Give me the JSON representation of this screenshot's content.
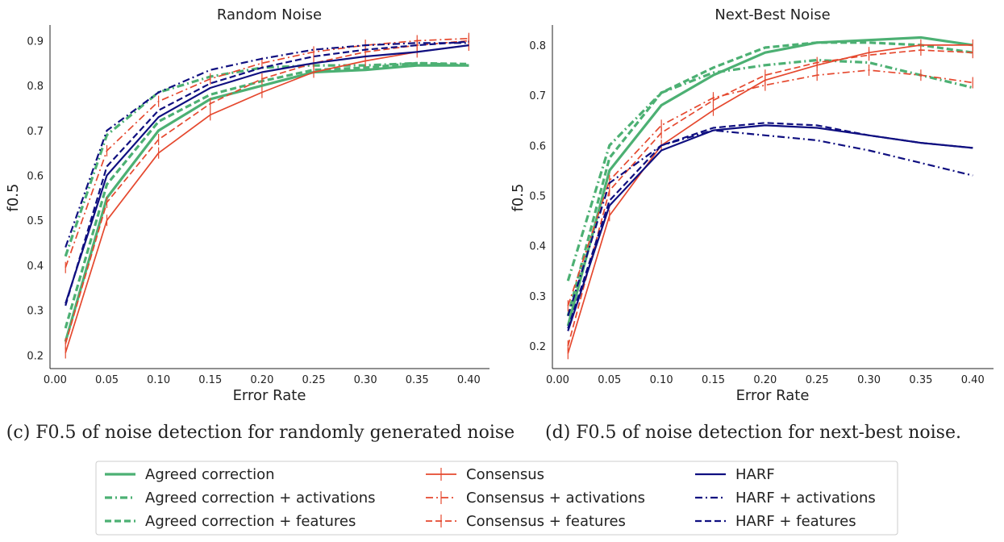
{
  "colors": {
    "agreed": "#4CB073",
    "consensus": "#E5482E",
    "harf": "#0F0F80",
    "axis": "#222222"
  },
  "chart_data": [
    {
      "type": "line",
      "title": "Random Noise",
      "xlabel": "Error Rate",
      "ylabel": "f0.5",
      "xlim": [
        -0.005,
        0.42
      ],
      "ylim": [
        0.17,
        0.935
      ],
      "x_ticks": [
        "0.00",
        "0.05",
        "0.10",
        "0.15",
        "0.20",
        "0.25",
        "0.30",
        "0.35",
        "0.40"
      ],
      "y_ticks": [
        "0.2",
        "0.3",
        "0.4",
        "0.5",
        "0.6",
        "0.7",
        "0.8",
        "0.9"
      ],
      "grid": false,
      "caption": "(c) F0.5 of noise detection for randomly generated noise",
      "series": [
        {
          "name": "Agreed correction",
          "method": "agreed",
          "style": "solid",
          "x": [
            0.01,
            0.05,
            0.1,
            0.15,
            0.2,
            0.25,
            0.3,
            0.35,
            0.4
          ],
          "y": [
            0.23,
            0.55,
            0.7,
            0.77,
            0.8,
            0.83,
            0.835,
            0.845,
            0.845
          ]
        },
        {
          "name": "Agreed correction + activations",
          "method": "agreed",
          "style": "dashdot",
          "x": [
            0.01,
            0.05,
            0.1,
            0.15,
            0.2,
            0.25,
            0.3,
            0.35,
            0.4
          ],
          "y": [
            0.42,
            0.69,
            0.785,
            0.82,
            0.84,
            0.845,
            0.845,
            0.85,
            0.845
          ]
        },
        {
          "name": "Agreed correction + features",
          "method": "agreed",
          "style": "dashed",
          "x": [
            0.01,
            0.05,
            0.1,
            0.15,
            0.2,
            0.25,
            0.3,
            0.35,
            0.4
          ],
          "y": [
            0.26,
            0.58,
            0.72,
            0.78,
            0.81,
            0.835,
            0.84,
            0.85,
            0.848
          ]
        },
        {
          "name": "Consensus",
          "method": "consensus",
          "style": "solid",
          "x": [
            0.01,
            0.05,
            0.1,
            0.15,
            0.2,
            0.25,
            0.3,
            0.35,
            0.4
          ],
          "y": [
            0.205,
            0.5,
            0.65,
            0.735,
            0.785,
            0.83,
            0.855,
            0.875,
            0.89
          ]
        },
        {
          "name": "Consensus + activations",
          "method": "consensus",
          "style": "dashdot",
          "x": [
            0.01,
            0.05,
            0.1,
            0.15,
            0.2,
            0.25,
            0.3,
            0.35,
            0.4
          ],
          "y": [
            0.395,
            0.655,
            0.765,
            0.815,
            0.85,
            0.875,
            0.89,
            0.9,
            0.905
          ]
        },
        {
          "name": "Consensus + features",
          "method": "consensus",
          "style": "dashed",
          "x": [
            0.01,
            0.05,
            0.1,
            0.15,
            0.2,
            0.25,
            0.3,
            0.35,
            0.4
          ],
          "y": [
            0.225,
            0.54,
            0.68,
            0.76,
            0.815,
            0.85,
            0.875,
            0.89,
            0.9
          ]
        },
        {
          "name": "HARF",
          "method": "harf",
          "style": "solid",
          "x": [
            0.01,
            0.05,
            0.1,
            0.15,
            0.2,
            0.25,
            0.3,
            0.35,
            0.4
          ],
          "y": [
            0.315,
            0.6,
            0.73,
            0.795,
            0.83,
            0.85,
            0.865,
            0.875,
            0.89
          ]
        },
        {
          "name": "HARF + activations",
          "method": "harf",
          "style": "dashdot",
          "x": [
            0.01,
            0.05,
            0.1,
            0.15,
            0.2,
            0.25,
            0.3,
            0.35,
            0.4
          ],
          "y": [
            0.44,
            0.7,
            0.785,
            0.835,
            0.86,
            0.88,
            0.89,
            0.895,
            0.895
          ]
        },
        {
          "name": "HARF + features",
          "method": "harf",
          "style": "dashed",
          "x": [
            0.01,
            0.05,
            0.1,
            0.15,
            0.2,
            0.25,
            0.3,
            0.35,
            0.4
          ],
          "y": [
            0.31,
            0.62,
            0.745,
            0.805,
            0.84,
            0.865,
            0.88,
            0.89,
            0.898
          ]
        }
      ]
    },
    {
      "type": "line",
      "title": "Next-Best Noise",
      "xlabel": "Error Rate",
      "ylabel": "f0.5",
      "xlim": [
        -0.005,
        0.42
      ],
      "ylim": [
        0.155,
        0.84
      ],
      "x_ticks": [
        "0.00",
        "0.05",
        "0.10",
        "0.15",
        "0.20",
        "0.25",
        "0.30",
        "0.35",
        "0.40"
      ],
      "y_ticks": [
        "0.2",
        "0.3",
        "0.4",
        "0.5",
        "0.6",
        "0.7",
        "0.8"
      ],
      "grid": false,
      "caption": "(d) F0.5 of noise detection for next-best noise.",
      "series": [
        {
          "name": "Agreed correction",
          "method": "agreed",
          "style": "solid",
          "x": [
            0.01,
            0.05,
            0.1,
            0.15,
            0.2,
            0.25,
            0.3,
            0.35,
            0.4
          ],
          "y": [
            0.24,
            0.55,
            0.68,
            0.74,
            0.785,
            0.805,
            0.81,
            0.815,
            0.8
          ]
        },
        {
          "name": "Agreed correction + activations",
          "method": "agreed",
          "style": "dashdot",
          "x": [
            0.01,
            0.05,
            0.1,
            0.15,
            0.2,
            0.25,
            0.3,
            0.35,
            0.4
          ],
          "y": [
            0.33,
            0.6,
            0.705,
            0.745,
            0.76,
            0.77,
            0.765,
            0.74,
            0.715
          ]
        },
        {
          "name": "Agreed correction + features",
          "method": "agreed",
          "style": "dashed",
          "x": [
            0.01,
            0.05,
            0.1,
            0.15,
            0.2,
            0.25,
            0.3,
            0.35,
            0.4
          ],
          "y": [
            0.26,
            0.575,
            0.705,
            0.755,
            0.795,
            0.805,
            0.805,
            0.8,
            0.785
          ]
        },
        {
          "name": "Consensus",
          "method": "consensus",
          "style": "solid",
          "x": [
            0.01,
            0.05,
            0.1,
            0.15,
            0.2,
            0.25,
            0.3,
            0.35,
            0.4
          ],
          "y": [
            0.185,
            0.46,
            0.6,
            0.67,
            0.73,
            0.76,
            0.785,
            0.8,
            0.8
          ]
        },
        {
          "name": "Consensus + activations",
          "method": "consensus",
          "style": "dashdot",
          "x": [
            0.01,
            0.05,
            0.1,
            0.15,
            0.2,
            0.25,
            0.3,
            0.35,
            0.4
          ],
          "y": [
            0.28,
            0.53,
            0.64,
            0.695,
            0.72,
            0.74,
            0.75,
            0.74,
            0.725
          ]
        },
        {
          "name": "Consensus + features",
          "method": "consensus",
          "style": "dashed",
          "x": [
            0.01,
            0.05,
            0.1,
            0.15,
            0.2,
            0.25,
            0.3,
            0.35,
            0.4
          ],
          "y": [
            0.2,
            0.51,
            0.625,
            0.69,
            0.74,
            0.765,
            0.78,
            0.79,
            0.785
          ]
        },
        {
          "name": "HARF",
          "method": "harf",
          "style": "solid",
          "x": [
            0.01,
            0.05,
            0.1,
            0.15,
            0.2,
            0.25,
            0.3,
            0.35,
            0.4
          ],
          "y": [
            0.23,
            0.48,
            0.59,
            0.63,
            0.64,
            0.635,
            0.62,
            0.605,
            0.595
          ]
        },
        {
          "name": "HARF + activations",
          "method": "harf",
          "style": "dashdot",
          "x": [
            0.01,
            0.05,
            0.1,
            0.15,
            0.2,
            0.25,
            0.3,
            0.35,
            0.4
          ],
          "y": [
            0.26,
            0.525,
            0.6,
            0.63,
            0.62,
            0.61,
            0.59,
            0.565,
            0.54
          ]
        },
        {
          "name": "HARF + features",
          "method": "harf",
          "style": "dashed",
          "x": [
            0.01,
            0.05,
            0.1,
            0.15,
            0.2,
            0.25,
            0.3,
            0.35,
            0.4
          ],
          "y": [
            0.235,
            0.49,
            0.6,
            0.635,
            0.645,
            0.64,
            0.62,
            0.605,
            0.595
          ]
        }
      ]
    }
  ],
  "legend": {
    "placement": "bottom-center",
    "columns": [
      [
        "Agreed correction",
        "Agreed correction + activations",
        "Agreed correction + features"
      ],
      [
        "Consensus",
        "Consensus + activations",
        "Consensus + features"
      ],
      [
        "HARF",
        "HARF + activations",
        "HARF + features"
      ]
    ]
  }
}
